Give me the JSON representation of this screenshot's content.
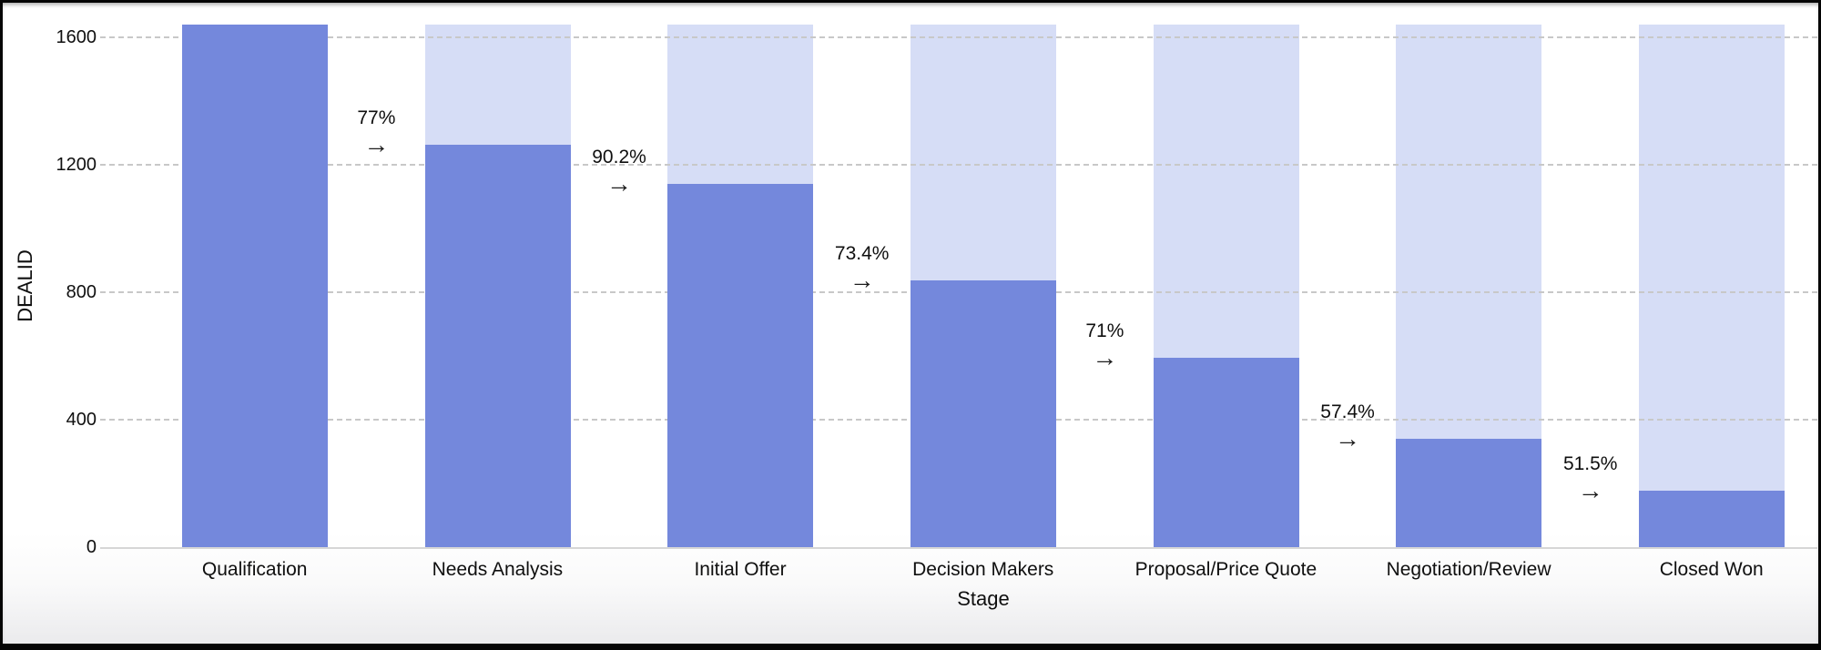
{
  "chart_data": {
    "type": "bar",
    "subtype": "funnel",
    "title": "",
    "xlabel": "Stage",
    "ylabel": "DEALID",
    "categories": [
      "Qualification",
      "Needs Analysis",
      "Initial Offer",
      "Decision Makers",
      "Proposal/Price Quote",
      "Negotiation/Review",
      "Closed Won"
    ],
    "values": [
      1640,
      1263,
      1139,
      836,
      594,
      341,
      176
    ],
    "conversion_labels": [
      "77%",
      "90.2%",
      "73.4%",
      "71%",
      "57.4%",
      "51.5%"
    ],
    "arrow_glyph": "→",
    "yticks": [
      0,
      400,
      800,
      1200,
      1600
    ],
    "ylim": [
      0,
      1640
    ],
    "grid": "horizontal-dashed",
    "legend": "none",
    "colors": {
      "bar": "#7488dc",
      "bar_background": "#d6ddf6",
      "gridline": "#c8c8c8",
      "axis_line": "#d6d6d6",
      "text": "#0f0f0f",
      "frame_border": "#050505"
    }
  }
}
